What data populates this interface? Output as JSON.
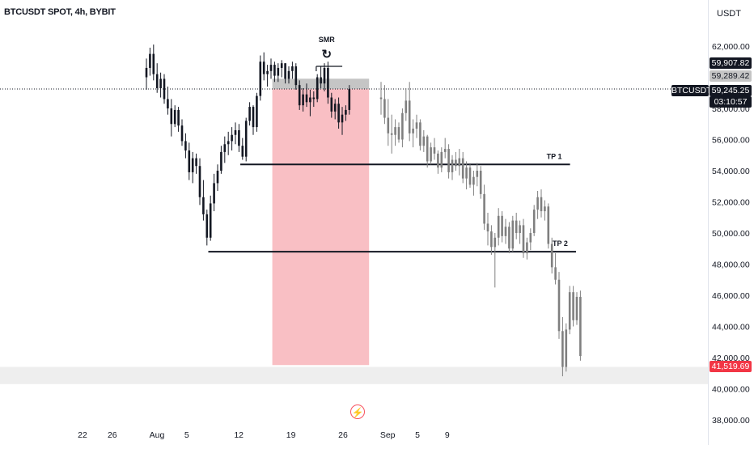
{
  "header": {
    "title": "BTCUSDT SPOT, 4h, BYBIT",
    "currency": "USDT"
  },
  "price_tags": {
    "symbol": "BTCUSDT",
    "high": "59,907.82",
    "mid": "59,289.42",
    "last": "59,245.25",
    "countdown": "03:10:57",
    "low": "41,519.69"
  },
  "colors": {
    "candle": "#131722",
    "projection": "#7f7f7f",
    "short_zone": "#f9bfc4",
    "stop_zone": "#c5c5c5",
    "support_band": "#eeeeee",
    "red_tag": "#f23645"
  },
  "chart_data": {
    "type": "candlestick",
    "y_ticks": [
      38000,
      40000,
      42000,
      44000,
      46000,
      48000,
      50000,
      52000,
      54000,
      56000,
      58000,
      60000,
      62000
    ],
    "y_tick_labels": [
      "38,000.00",
      "40,000.00",
      "42,000.00",
      "44,000.00",
      "46,000.00",
      "48,000.00",
      "50,000.00",
      "52,000.00",
      "54,000.00",
      "56,000.00",
      "58,000.00",
      "60,000.00",
      "62,000.00"
    ],
    "x_labels": [
      "22",
      "26",
      "Aug",
      "5",
      "12",
      "19",
      "26",
      "Sep",
      "5",
      "9"
    ],
    "x_label_days": [
      -10,
      -6,
      0,
      4,
      11,
      18,
      25,
      31,
      35,
      39
    ],
    "annotations": {
      "smr": "SMR",
      "tp1": "TP 1",
      "tp2": "TP 2"
    },
    "levels": {
      "tp1": 54400,
      "tp2": 48800,
      "smr": 60700,
      "last_price": 59245
    },
    "short_position": {
      "start_day": 15.5,
      "end_day": 28.5,
      "entry": 59245,
      "stop": 59907,
      "target": 41520
    },
    "support_band": [
      40300,
      41400
    ],
    "candles": [
      [
        60000,
        61200,
        59200,
        60600
      ],
      [
        60600,
        61900,
        60100,
        61500
      ],
      [
        61500,
        62100,
        59800,
        60200
      ],
      [
        60200,
        60900,
        59000,
        59300
      ],
      [
        59300,
        60300,
        58700,
        59900
      ],
      [
        59900,
        60200,
        58300,
        58600
      ],
      [
        58600,
        59400,
        57600,
        58000
      ],
      [
        58000,
        58600,
        56200,
        57000
      ],
      [
        57000,
        58200,
        56800,
        57900
      ],
      [
        57900,
        58100,
        56500,
        56900
      ],
      [
        56900,
        57300,
        55600,
        55900
      ],
      [
        55900,
        56400,
        54800,
        55300
      ],
      [
        55300,
        55800,
        53400,
        53900
      ],
      [
        53900,
        55200,
        53200,
        54800
      ],
      [
        54800,
        55100,
        53800,
        54300
      ],
      [
        54300,
        54800,
        51800,
        52300
      ],
      [
        52300,
        53400,
        50800,
        51200
      ],
      [
        51200,
        51500,
        49200,
        49700
      ],
      [
        49700,
        52400,
        49500,
        51900
      ],
      [
        51900,
        53800,
        51400,
        53200
      ],
      [
        53200,
        54400,
        52700,
        54000
      ],
      [
        54000,
        55600,
        53800,
        55200
      ],
      [
        55200,
        56200,
        54500,
        55700
      ],
      [
        55700,
        56500,
        55000,
        55900
      ],
      [
        55900,
        56800,
        55300,
        56300
      ],
      [
        56300,
        57100,
        55700,
        56600
      ],
      [
        56600,
        57000,
        55200,
        55600
      ],
      [
        55600,
        56100,
        54700,
        54900
      ],
      [
        54900,
        57400,
        54600,
        57200
      ],
      [
        57200,
        58400,
        56900,
        58100
      ],
      [
        58100,
        58200,
        56300,
        56800
      ],
      [
        56800,
        59000,
        56500,
        58800
      ],
      [
        58800,
        61400,
        58500,
        61000
      ],
      [
        61000,
        61600,
        59800,
        60200
      ],
      [
        60200,
        60800,
        59400,
        60400
      ],
      [
        60400,
        61200,
        59900,
        60800
      ],
      [
        60800,
        61000,
        59700,
        60100
      ],
      [
        60100,
        60900,
        59700,
        60600
      ],
      [
        60600,
        61100,
        60000,
        60900
      ],
      [
        60900,
        60900,
        59600,
        59900
      ],
      [
        59900,
        60700,
        59600,
        60400
      ],
      [
        60400,
        61000,
        59900,
        60700
      ],
      [
        60700,
        60900,
        59200,
        59500
      ],
      [
        59500,
        59800,
        57900,
        58200
      ],
      [
        58200,
        59300,
        57800,
        58900
      ],
      [
        58900,
        59600,
        58100,
        58400
      ],
      [
        58400,
        59200,
        57500,
        58700
      ],
      [
        58700,
        59100,
        58100,
        58600
      ],
      [
        58600,
        60200,
        58400,
        60000
      ],
      [
        60000,
        60700,
        59300,
        59600
      ],
      [
        59600,
        60900,
        59100,
        60600
      ],
      [
        60600,
        61000,
        58300,
        58700
      ],
      [
        58700,
        59000,
        57400,
        57800
      ],
      [
        57800,
        58600,
        57300,
        58300
      ],
      [
        58300,
        58700,
        56700,
        57100
      ],
      [
        57100,
        58100,
        56300,
        57600
      ],
      [
        57600,
        58200,
        57200,
        57900
      ],
      [
        57900,
        59500,
        57600,
        59245
      ]
    ],
    "projection": [
      [
        58700,
        59700,
        57600,
        58600
      ],
      [
        58600,
        59500,
        57000,
        57400
      ],
      [
        57400,
        58600,
        55600,
        56400
      ],
      [
        56400,
        57600,
        55100,
        56300
      ],
      [
        56300,
        57300,
        55600,
        56800
      ],
      [
        56800,
        57100,
        55800,
        56000
      ],
      [
        56000,
        58000,
        55500,
        57700
      ],
      [
        57700,
        59300,
        57200,
        58500
      ],
      [
        58500,
        59700,
        55900,
        56400
      ],
      [
        56400,
        57300,
        55500,
        56700
      ],
      [
        56700,
        57600,
        56100,
        57100
      ],
      [
        57100,
        57300,
        55300,
        55600
      ],
      [
        55600,
        56600,
        55200,
        56200
      ],
      [
        56200,
        56300,
        54200,
        54600
      ],
      [
        54600,
        55800,
        54400,
        55500
      ],
      [
        55500,
        56100,
        54700,
        55100
      ],
      [
        55100,
        55300,
        53800,
        54200
      ],
      [
        54200,
        55500,
        53900,
        55200
      ],
      [
        55200,
        56100,
        54800,
        55400
      ],
      [
        55400,
        55700,
        53500,
        53900
      ],
      [
        53900,
        55000,
        53400,
        54700
      ],
      [
        54700,
        55200,
        54000,
        54300
      ],
      [
        54300,
        55400,
        53700,
        54800
      ],
      [
        54800,
        55200,
        53200,
        53500
      ],
      [
        53500,
        54600,
        52800,
        54200
      ],
      [
        54200,
        54400,
        52900,
        53100
      ],
      [
        53100,
        54000,
        52400,
        53600
      ],
      [
        53600,
        54500,
        53000,
        54000
      ],
      [
        54000,
        54300,
        52200,
        52500
      ],
      [
        52500,
        53100,
        50200,
        50600
      ],
      [
        50600,
        51300,
        49200,
        50100
      ],
      [
        50100,
        50500,
        48600,
        49100
      ],
      [
        49100,
        50000,
        46500,
        49700
      ],
      [
        49700,
        51600,
        49200,
        51100
      ],
      [
        51100,
        51400,
        49400,
        49800
      ],
      [
        49800,
        50900,
        49300,
        50400
      ],
      [
        50400,
        50700,
        48700,
        49000
      ],
      [
        49000,
        51100,
        48800,
        50800
      ],
      [
        50800,
        51300,
        49600,
        50000
      ],
      [
        50000,
        50800,
        49300,
        50500
      ],
      [
        50500,
        50900,
        48400,
        48700
      ],
      [
        48700,
        49700,
        48300,
        49400
      ],
      [
        49400,
        50300,
        48900,
        50000
      ],
      [
        50000,
        51800,
        49800,
        51500
      ],
      [
        51500,
        52700,
        50900,
        52300
      ],
      [
        52300,
        52800,
        51000,
        51400
      ],
      [
        51400,
        52100,
        50800,
        51700
      ],
      [
        51700,
        51900,
        49000,
        49300
      ],
      [
        49300,
        49700,
        47400,
        47800
      ],
      [
        47800,
        48700,
        46700,
        47000
      ],
      [
        47000,
        47500,
        43200,
        43700
      ],
      [
        43700,
        44600,
        40800,
        41400
      ],
      [
        41400,
        44200,
        41100,
        43800
      ],
      [
        43800,
        46600,
        43500,
        46200
      ],
      [
        46200,
        46600,
        44000,
        44400
      ],
      [
        44400,
        46200,
        44100,
        45900
      ],
      [
        45900,
        46300,
        41800,
        42100
      ]
    ]
  }
}
